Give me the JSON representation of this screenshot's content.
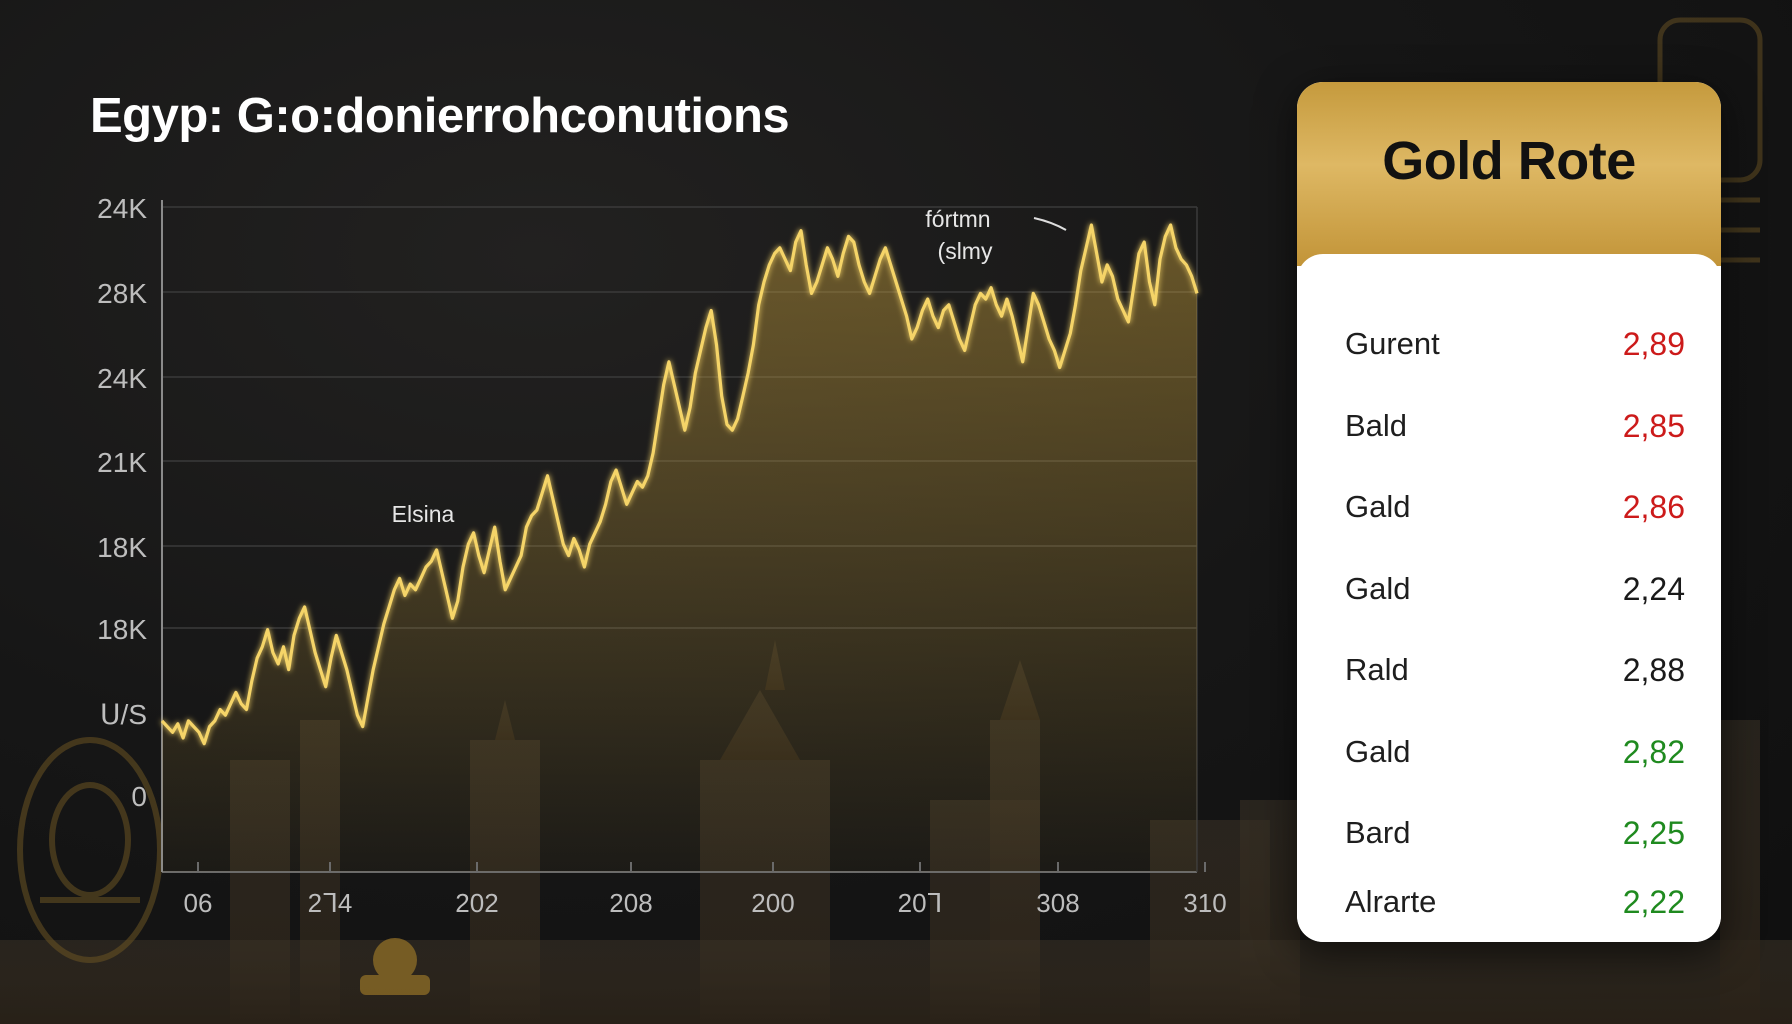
{
  "title": "Egyp: G:o:donierrohconutions",
  "chart_data": {
    "type": "area",
    "title": "Egyp: G:o:donierrohconutions",
    "y_tick_labels": [
      "24K",
      "28K",
      "24K",
      "21K",
      "18K",
      "18K",
      "ᑌ/S",
      "0"
    ],
    "x_tick_labels": [
      "06",
      "2ᒣ4",
      "202",
      "208",
      "200",
      "20ᒣ",
      "308",
      "310"
    ],
    "annotations": [
      {
        "text": "Elsina",
        "x_index": 4.2,
        "y_frac": 0.6
      },
      {
        "text": "fórtmn",
        "x_index": 9.5,
        "y_frac": 0.94
      },
      {
        "text": "(slmy",
        "x_index": 9.5,
        "y_frac": 0.94
      }
    ],
    "line_color": "#f5d468",
    "fill_color": "#c9a13c",
    "grid": true,
    "y_range": [
      0,
      1
    ],
    "values": [
      0.13,
      0.12,
      0.11,
      0.125,
      0.1,
      0.13,
      0.12,
      0.11,
      0.09,
      0.12,
      0.13,
      0.15,
      0.14,
      0.16,
      0.18,
      0.16,
      0.15,
      0.2,
      0.24,
      0.26,
      0.29,
      0.25,
      0.23,
      0.26,
      0.22,
      0.28,
      0.31,
      0.33,
      0.29,
      0.25,
      0.22,
      0.19,
      0.24,
      0.28,
      0.25,
      0.22,
      0.18,
      0.14,
      0.12,
      0.17,
      0.22,
      0.26,
      0.3,
      0.33,
      0.36,
      0.38,
      0.35,
      0.37,
      0.36,
      0.38,
      0.4,
      0.41,
      0.43,
      0.39,
      0.35,
      0.31,
      0.34,
      0.4,
      0.44,
      0.46,
      0.42,
      0.39,
      0.43,
      0.47,
      0.41,
      0.36,
      0.38,
      0.4,
      0.42,
      0.47,
      0.49,
      0.5,
      0.53,
      0.56,
      0.52,
      0.48,
      0.44,
      0.42,
      0.45,
      0.43,
      0.4,
      0.44,
      0.46,
      0.48,
      0.51,
      0.55,
      0.57,
      0.54,
      0.51,
      0.53,
      0.55,
      0.54,
      0.56,
      0.6,
      0.66,
      0.72,
      0.76,
      0.72,
      0.68,
      0.64,
      0.68,
      0.74,
      0.78,
      0.82,
      0.85,
      0.79,
      0.7,
      0.65,
      0.64,
      0.66,
      0.7,
      0.74,
      0.79,
      0.86,
      0.9,
      0.93,
      0.95,
      0.96,
      0.94,
      0.92,
      0.97,
      0.99,
      0.93,
      0.88,
      0.9,
      0.93,
      0.96,
      0.94,
      0.91,
      0.95,
      0.98,
      0.97,
      0.93,
      0.9,
      0.88,
      0.91,
      0.94,
      0.96,
      0.93,
      0.9,
      0.87,
      0.84,
      0.8,
      0.82,
      0.85,
      0.87,
      0.84,
      0.82,
      0.85,
      0.86,
      0.83,
      0.8,
      0.78,
      0.82,
      0.86,
      0.88,
      0.87,
      0.89,
      0.86,
      0.84,
      0.87,
      0.84,
      0.8,
      0.76,
      0.82,
      0.88,
      0.86,
      0.83,
      0.8,
      0.78,
      0.75,
      0.78,
      0.81,
      0.86,
      0.92,
      0.96,
      1.0,
      0.95,
      0.9,
      0.93,
      0.91,
      0.87,
      0.85,
      0.83,
      0.89,
      0.95,
      0.97,
      0.9,
      0.86,
      0.94,
      0.98,
      1.0,
      0.96,
      0.94,
      0.93,
      0.91,
      0.88
    ]
  },
  "rates_panel": {
    "title": "Gold Rote",
    "rows": [
      {
        "label": "Gurent",
        "value": "2,89",
        "color": "#cc1a1a"
      },
      {
        "label": "Bald",
        "value": "2,85",
        "color": "#cc1a1a"
      },
      {
        "label": "Gald",
        "value": "2,86",
        "color": "#cc1a1a"
      },
      {
        "label": "Gald",
        "value": "2,24",
        "color": "#1a1a1a"
      },
      {
        "label": "Rald",
        "value": "2,88",
        "color": "#1a1a1a"
      },
      {
        "label": "Gald",
        "value": "2,82",
        "color": "#1f8a1f"
      },
      {
        "label": "Bard",
        "value": "2,25",
        "color": "#1f8a1f"
      },
      {
        "label": "Alrarte",
        "value": "2,22",
        "color": "#1f8a1f"
      }
    ]
  }
}
